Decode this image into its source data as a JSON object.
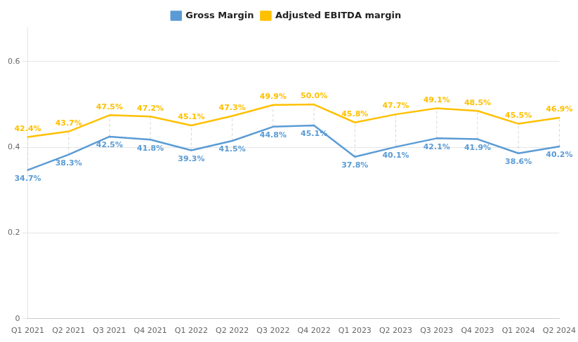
{
  "chart_data": {
    "type": "line",
    "categories": [
      "Q1 2021",
      "Q2 2021",
      "Q3 2021",
      "Q4 2021",
      "Q1 2022",
      "Q2 2022",
      "Q3 2022",
      "Q4 2022",
      "Q1 2023",
      "Q2 2023",
      "Q3 2023",
      "Q4 2023",
      "Q1 2024",
      "Q2 2024"
    ],
    "series": [
      {
        "name": "Gross Margin",
        "color": "#5b9bd5",
        "values": [
          0.347,
          0.383,
          0.425,
          0.418,
          0.393,
          0.415,
          0.448,
          0.451,
          0.378,
          0.401,
          0.421,
          0.419,
          0.386,
          0.402
        ],
        "value_labels": [
          "34.7%",
          "38.3%",
          "42.5%",
          "41.8%",
          "39.3%",
          "41.5%",
          "44.8%",
          "45.1%",
          "37.8%",
          "40.1%",
          "42.1%",
          "41.9%",
          "38.6%",
          "40.2%"
        ]
      },
      {
        "name": "Adjusted EBITDA margin",
        "color": "#ffc000",
        "values": [
          0.424,
          0.437,
          0.475,
          0.472,
          0.451,
          0.473,
          0.499,
          0.5,
          0.458,
          0.477,
          0.491,
          0.485,
          0.455,
          0.469
        ],
        "value_labels": [
          "42.4%",
          "43.7%",
          "47.5%",
          "47.2%",
          "45.1%",
          "47.3%",
          "49.9%",
          "50.0%",
          "45.8%",
          "47.7%",
          "49.1%",
          "48.5%",
          "45.5%",
          "46.9%"
        ]
      }
    ],
    "ylim": [
      0,
      0.68
    ],
    "yticks": [
      0,
      0.2,
      0.4,
      0.6
    ],
    "grid": true,
    "legend": "top",
    "data_labels": true,
    "marker": "none"
  }
}
